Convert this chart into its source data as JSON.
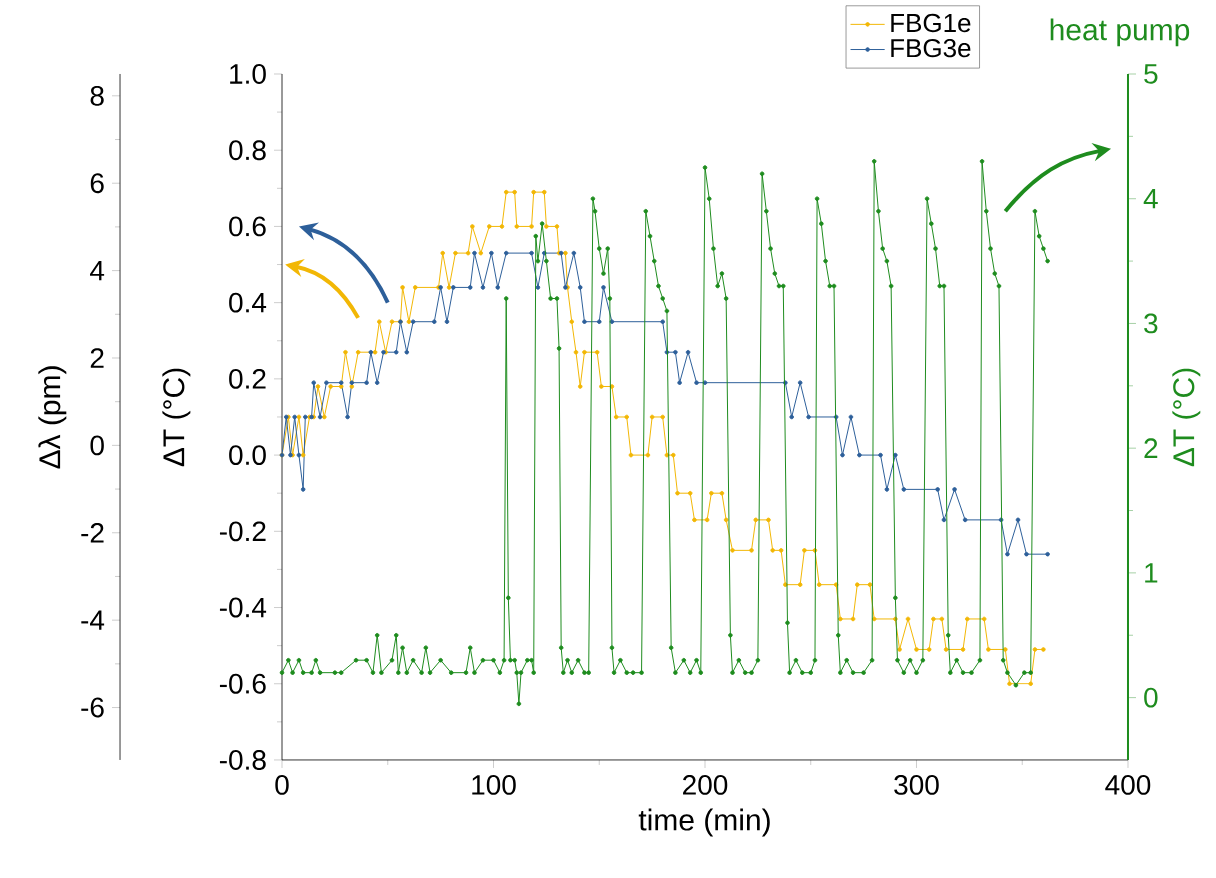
{
  "chart_data": {
    "type": "line",
    "xlabel": "time (min)",
    "ylabel": "ΔT (°C)",
    "y2label": "ΔT (°C)",
    "y3label": "Δλ (pm)",
    "xlim": [
      0,
      400
    ],
    "xticks": [
      0,
      100,
      200,
      300,
      400
    ],
    "ylim": [
      -0.8,
      1.0
    ],
    "yticks": [
      -0.8,
      -0.6,
      -0.4,
      -0.2,
      {
        "value": 0,
        "label": "0.0"
      },
      0.2,
      0.4,
      0.6,
      0.8,
      {
        "value": 1,
        "label": "1.0"
      }
    ],
    "y2lim": [
      -0.5,
      5
    ],
    "y2ticks": [
      0,
      1,
      2,
      3,
      4,
      5
    ],
    "y3lim": [
      -7.2,
      8.5
    ],
    "y3ticks": [
      -6,
      -4,
      -2,
      0,
      2,
      4,
      6,
      8
    ],
    "legend": "top right",
    "marker": "circle",
    "line_style": "solid",
    "series": [
      {
        "name": "FBG1e",
        "color": "#f2b705",
        "x": [
          0,
          3,
          5,
          8,
          10,
          13,
          15,
          17,
          20,
          23,
          28,
          30,
          33,
          36,
          44,
          46,
          49,
          52,
          56,
          57,
          60,
          63,
          74,
          76,
          79,
          82,
          88,
          90,
          94,
          98,
          104,
          106,
          110,
          111,
          118,
          119,
          124,
          125,
          130,
          131,
          134,
          135,
          137,
          139,
          141,
          143,
          149,
          151,
          156,
          158,
          163,
          165,
          173,
          175,
          180,
          182,
          185,
          187,
          193,
          195,
          201,
          203,
          208,
          210,
          213,
          222,
          224,
          230,
          232,
          236,
          238,
          245,
          247,
          252,
          254,
          262,
          264,
          270,
          272,
          278,
          280,
          290,
          292,
          296,
          300,
          306,
          308,
          312,
          314,
          322,
          324,
          332,
          334,
          342,
          344,
          354,
          356,
          360
        ],
        "values": [
          0.0,
          0.1,
          0.0,
          0.1,
          0.0,
          0.1,
          0.1,
          0.18,
          0.1,
          0.18,
          0.18,
          0.27,
          0.18,
          0.27,
          0.27,
          0.35,
          0.27,
          0.35,
          0.35,
          0.44,
          0.35,
          0.44,
          0.44,
          0.53,
          0.44,
          0.53,
          0.53,
          0.6,
          0.53,
          0.6,
          0.6,
          0.69,
          0.69,
          0.6,
          0.6,
          0.69,
          0.69,
          0.6,
          0.6,
          0.53,
          0.53,
          0.44,
          0.35,
          0.27,
          0.18,
          0.27,
          0.27,
          0.18,
          0.18,
          0.1,
          0.1,
          0.0,
          0.0,
          0.1,
          0.1,
          0.0,
          0.0,
          -0.1,
          -0.1,
          -0.17,
          -0.17,
          -0.1,
          -0.1,
          -0.17,
          -0.25,
          -0.25,
          -0.17,
          -0.17,
          -0.25,
          -0.25,
          -0.34,
          -0.34,
          -0.25,
          -0.25,
          -0.34,
          -0.34,
          -0.43,
          -0.43,
          -0.34,
          -0.34,
          -0.43,
          -0.43,
          -0.51,
          -0.43,
          -0.51,
          -0.51,
          -0.43,
          -0.43,
          -0.51,
          -0.51,
          -0.43,
          -0.43,
          -0.51,
          -0.51,
          -0.6,
          -0.6,
          -0.51,
          -0.51
        ]
      },
      {
        "name": "FBG3e",
        "color": "#2d5f9a",
        "x": [
          0,
          2,
          4,
          6,
          8,
          10,
          11,
          14,
          15,
          18,
          21,
          28,
          31,
          33,
          40,
          42,
          45,
          48,
          54,
          56,
          59,
          62,
          72,
          75,
          78,
          81,
          89,
          91,
          95,
          99,
          102,
          106,
          118,
          121,
          124,
          132,
          134,
          138,
          141,
          143,
          150,
          152,
          156,
          180,
          182,
          186,
          188,
          192,
          196,
          200,
          238,
          241,
          245,
          249,
          262,
          265,
          269,
          273,
          283,
          286,
          290,
          294,
          310,
          313,
          318,
          323,
          340,
          343,
          348,
          352,
          362
        ],
        "values": [
          0.0,
          0.1,
          0.0,
          0.1,
          0.0,
          -0.09,
          0.1,
          0.1,
          0.19,
          0.1,
          0.19,
          0.19,
          0.1,
          0.19,
          0.19,
          0.27,
          0.19,
          0.27,
          0.27,
          0.35,
          0.27,
          0.35,
          0.35,
          0.44,
          0.35,
          0.44,
          0.44,
          0.53,
          0.44,
          0.53,
          0.44,
          0.53,
          0.53,
          0.44,
          0.53,
          0.53,
          0.44,
          0.53,
          0.44,
          0.35,
          0.35,
          0.44,
          0.35,
          0.35,
          0.27,
          0.27,
          0.19,
          0.27,
          0.19,
          0.19,
          0.19,
          0.1,
          0.19,
          0.1,
          0.1,
          0.0,
          0.1,
          0.0,
          0.0,
          -0.09,
          0.0,
          -0.09,
          -0.09,
          -0.17,
          -0.09,
          -0.17,
          -0.17,
          -0.26,
          -0.17,
          -0.26,
          -0.26
        ]
      },
      {
        "name": "heat pump",
        "color": "#1e8c1e",
        "axis": "y2",
        "x": [
          0,
          3,
          5,
          8,
          10,
          14,
          16,
          18,
          25,
          28,
          35,
          40,
          43,
          45,
          47,
          52,
          54,
          55,
          57,
          59,
          62,
          66,
          68,
          70,
          75,
          80,
          87,
          89,
          91,
          95,
          100,
          103,
          105,
          106,
          107,
          108,
          110,
          111,
          112,
          113,
          116,
          118,
          119,
          120,
          121,
          123,
          125,
          127,
          130,
          131,
          132,
          133,
          135,
          137,
          140,
          143,
          145,
          147,
          148,
          150,
          152,
          154,
          155,
          156,
          157,
          160,
          163,
          166,
          170,
          172,
          174,
          176,
          178,
          180,
          182,
          184,
          186,
          190,
          193,
          196,
          198,
          200,
          202,
          204,
          206,
          208,
          210,
          212,
          213,
          216,
          219,
          222,
          225,
          227,
          229,
          231,
          233,
          235,
          237,
          239,
          240,
          243,
          246,
          250,
          252,
          253,
          255,
          257,
          259,
          261,
          263,
          264,
          267,
          270,
          275,
          279,
          280,
          282,
          284,
          286,
          288,
          290,
          291,
          294,
          297,
          300,
          303,
          305,
          307,
          309,
          311,
          313,
          315,
          316,
          319,
          322,
          326,
          330,
          331,
          333,
          335,
          337,
          339,
          341,
          343,
          347,
          351,
          354,
          356,
          358,
          360,
          362
        ],
        "values": [
          0.2,
          0.3,
          0.2,
          0.3,
          0.2,
          0.2,
          0.3,
          0.2,
          0.2,
          0.2,
          0.3,
          0.3,
          0.2,
          0.5,
          0.2,
          0.3,
          0.5,
          0.2,
          0.4,
          0.2,
          0.3,
          0.2,
          0.4,
          0.2,
          0.3,
          0.2,
          0.2,
          0.4,
          0.2,
          0.3,
          0.3,
          0.2,
          0.3,
          3.2,
          0.8,
          0.3,
          0.3,
          0.2,
          -0.05,
          0.2,
          0.3,
          0.3,
          0.2,
          3.7,
          3.5,
          3.8,
          3.5,
          3.2,
          3.2,
          2.8,
          0.4,
          0.2,
          0.3,
          0.2,
          0.3,
          0.2,
          0.2,
          4.0,
          3.9,
          3.6,
          3.4,
          3.6,
          3.2,
          0.4,
          0.2,
          0.3,
          0.2,
          0.2,
          0.2,
          3.9,
          3.7,
          3.5,
          3.3,
          3.2,
          3.1,
          0.4,
          0.2,
          0.3,
          0.2,
          0.3,
          0.2,
          4.25,
          4.0,
          3.6,
          3.3,
          3.4,
          3.2,
          0.5,
          0.2,
          0.3,
          0.2,
          0.2,
          0.3,
          4.2,
          3.9,
          3.6,
          3.4,
          3.3,
          3.3,
          0.6,
          0.2,
          0.3,
          0.2,
          0.2,
          0.3,
          4.0,
          3.8,
          3.5,
          3.3,
          3.3,
          0.5,
          0.2,
          0.3,
          0.2,
          0.2,
          0.3,
          4.3,
          3.9,
          3.6,
          3.5,
          3.3,
          0.8,
          0.3,
          0.2,
          0.3,
          0.2,
          0.3,
          4.0,
          3.8,
          3.6,
          3.3,
          3.3,
          0.5,
          0.2,
          0.3,
          0.2,
          0.2,
          0.3,
          4.3,
          3.9,
          3.6,
          3.4,
          3.3,
          0.3,
          0.2,
          0.1,
          0.2,
          0.2,
          3.9,
          3.7,
          3.6,
          3.5
        ]
      }
    ]
  }
}
